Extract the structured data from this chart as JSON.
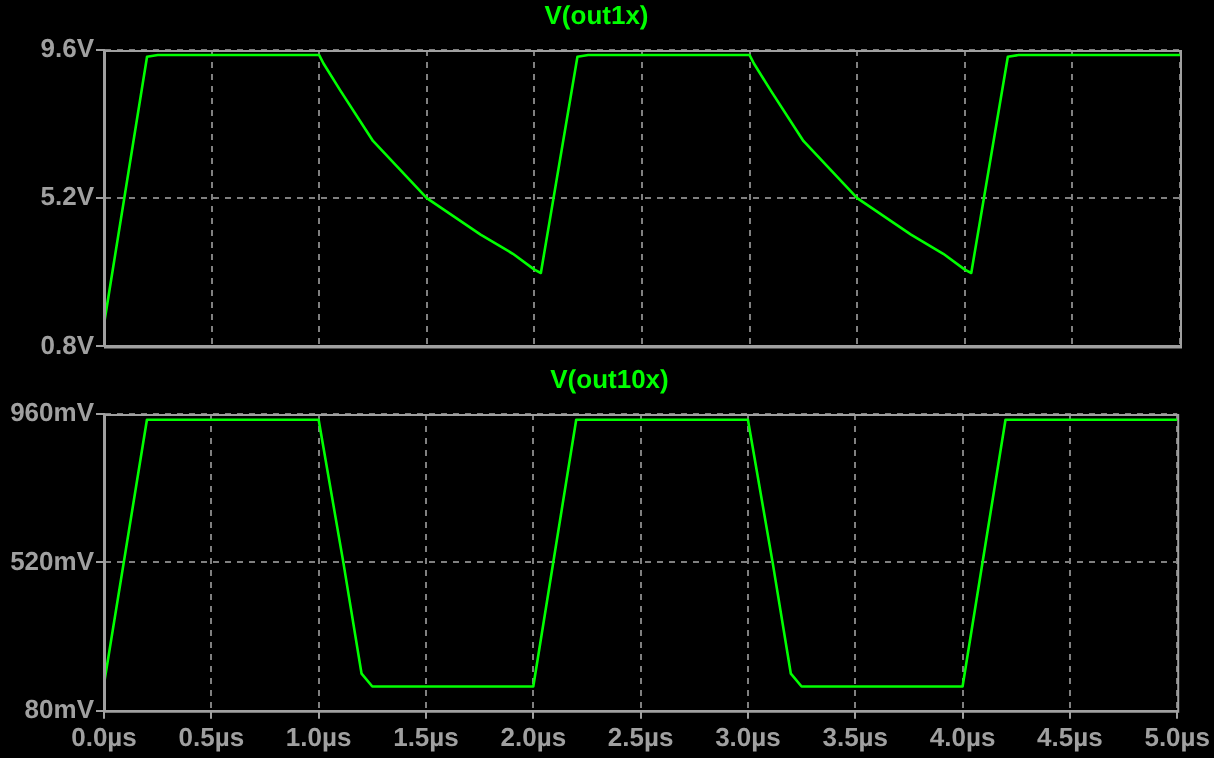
{
  "chart_data": [
    {
      "type": "line",
      "legend": "top",
      "grid": true,
      "marker": "none",
      "line_style": "solid",
      "tick_labels": "y",
      "xlim": [
        0,
        5
      ],
      "xticks": [
        {
          "value": 0,
          "label": null
        },
        {
          "value": 0.5,
          "label": null
        },
        {
          "value": 1,
          "label": null
        },
        {
          "value": 1.5,
          "label": null
        },
        {
          "value": 2,
          "label": null
        },
        {
          "value": 2.5,
          "label": null
        },
        {
          "value": 3,
          "label": null
        },
        {
          "value": 3.5,
          "label": null
        },
        {
          "value": 4,
          "label": null
        },
        {
          "value": 4.5,
          "label": null
        },
        {
          "value": 5,
          "label": null
        }
      ],
      "ylim": [
        0.8,
        9.6
      ],
      "yticks": [
        {
          "value": 0.8,
          "label": "0.8V"
        },
        {
          "value": 5.2,
          "label": "5.2V"
        },
        {
          "value": 9.6,
          "label": "9.6V"
        }
      ],
      "series": [
        {
          "name": "V(out1x)",
          "color": "#00ff00",
          "x": [
            0,
            0.2,
            0.25,
            1.0,
            1.02,
            1.1,
            1.25,
            1.5,
            1.75,
            1.9,
            2.0,
            2.03,
            2.2,
            2.25,
            3.0,
            3.02,
            3.1,
            3.25,
            3.5,
            3.75,
            3.9,
            4.0,
            4.03,
            4.2,
            4.25,
            5.0
          ],
          "values": [
            1.46,
            9.4,
            9.45,
            9.45,
            9.2,
            8.38,
            6.9,
            5.2,
            4.12,
            3.55,
            3.08,
            2.98,
            9.4,
            9.45,
            9.45,
            9.2,
            8.38,
            6.9,
            5.2,
            4.12,
            3.55,
            3.08,
            2.98,
            9.4,
            9.45,
            9.45
          ]
        }
      ]
    },
    {
      "type": "line",
      "legend": "top",
      "grid": true,
      "marker": "none",
      "line_style": "solid",
      "xlim": [
        0,
        5
      ],
      "xticks": [
        {
          "value": 0,
          "label": "0.0µs"
        },
        {
          "value": 0.5,
          "label": "0.5µs"
        },
        {
          "value": 1,
          "label": "1.0µs"
        },
        {
          "value": 1.5,
          "label": "1.5µs"
        },
        {
          "value": 2,
          "label": "2.0µs"
        },
        {
          "value": 2.5,
          "label": "2.5µs"
        },
        {
          "value": 3,
          "label": "3.0µs"
        },
        {
          "value": 3.5,
          "label": "3.5µs"
        },
        {
          "value": 4,
          "label": "4.0µs"
        },
        {
          "value": 4.5,
          "label": "4.5µs"
        },
        {
          "value": 5,
          "label": "5.0µs"
        }
      ],
      "ylim": [
        80,
        960
      ],
      "yticks": [
        {
          "value": 80,
          "label": "80mV"
        },
        {
          "value": 520,
          "label": "520mV"
        },
        {
          "value": 960,
          "label": "960mV"
        }
      ],
      "series": [
        {
          "name": "V(out10x)",
          "color": "#00ff00",
          "x": [
            0,
            0.2,
            1.0,
            1.115,
            1.2,
            1.25,
            2.0,
            2.2,
            3.0,
            3.115,
            3.2,
            3.25,
            4.0,
            4.2,
            5.0
          ],
          "values": [
            159,
            943,
            943,
            520,
            190,
            152,
            152,
            943,
            943,
            520,
            190,
            152,
            152,
            943,
            943
          ]
        }
      ]
    }
  ]
}
